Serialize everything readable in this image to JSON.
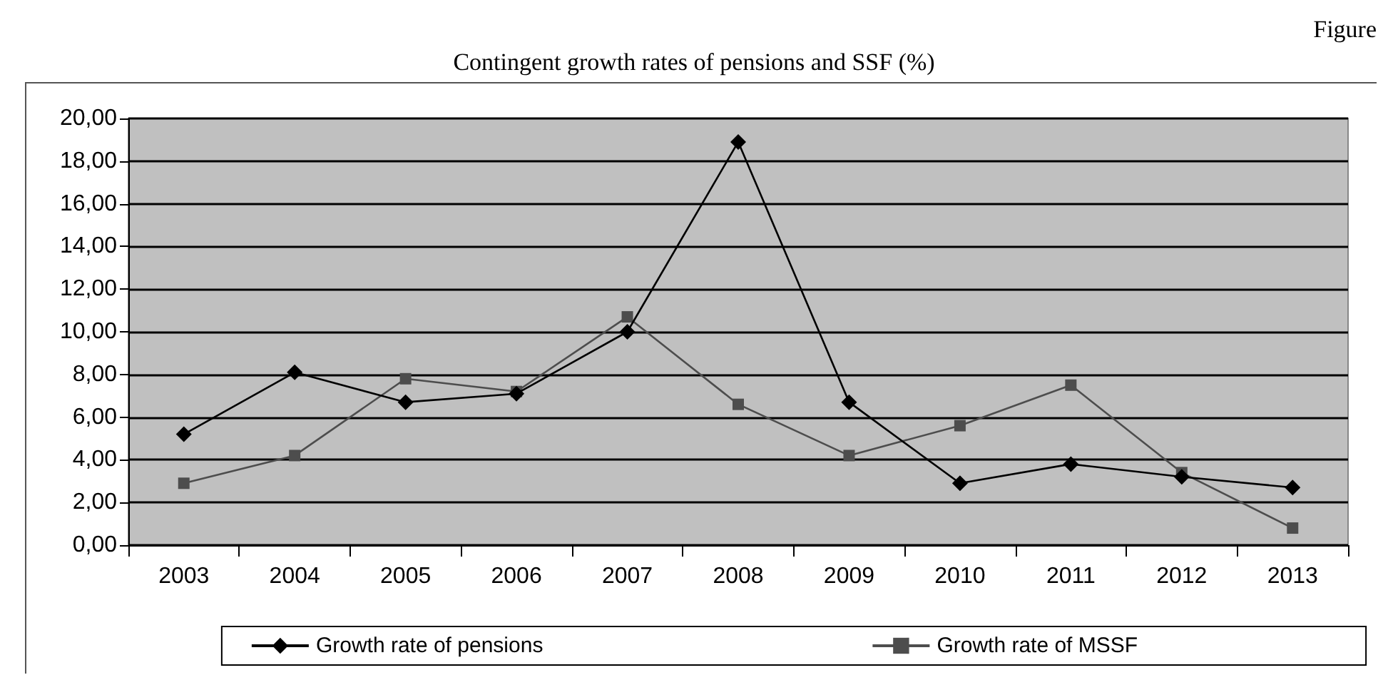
{
  "chart_data": {
    "type": "line",
    "title": "Contingent growth rates of pensions and SSF (%)",
    "annotations": [
      "Figure"
    ],
    "categories": [
      "2003",
      "2004",
      "2005",
      "2006",
      "2007",
      "2008",
      "2009",
      "2010",
      "2011",
      "2012",
      "2013"
    ],
    "series": [
      {
        "name": "Growth rate of pensions",
        "color": "#000000",
        "marker": "diamond",
        "values": [
          5.2,
          8.1,
          6.7,
          7.1,
          10.0,
          18.9,
          6.7,
          2.9,
          3.8,
          3.2,
          2.7
        ]
      },
      {
        "name": "Growth rate of MSSF",
        "color": "#4d4d4d",
        "marker": "square",
        "values": [
          2.9,
          4.2,
          7.8,
          7.2,
          10.7,
          6.6,
          4.2,
          5.6,
          7.5,
          3.4,
          0.8
        ]
      }
    ],
    "ylim": [
      0,
      20
    ],
    "yticks": [
      {
        "value": 0,
        "label": "0,00"
      },
      {
        "value": 2,
        "label": "2,00"
      },
      {
        "value": 4,
        "label": "4,00"
      },
      {
        "value": 6,
        "label": "6,00"
      },
      {
        "value": 8,
        "label": "8,00"
      },
      {
        "value": 10,
        "label": "10,00"
      },
      {
        "value": 12,
        "label": "12,00"
      },
      {
        "value": 14,
        "label": "14,00"
      },
      {
        "value": 16,
        "label": "16,00"
      },
      {
        "value": 18,
        "label": "18,00"
      },
      {
        "value": 20,
        "label": "20,00"
      }
    ],
    "grid": "y",
    "legend": "bottom"
  }
}
